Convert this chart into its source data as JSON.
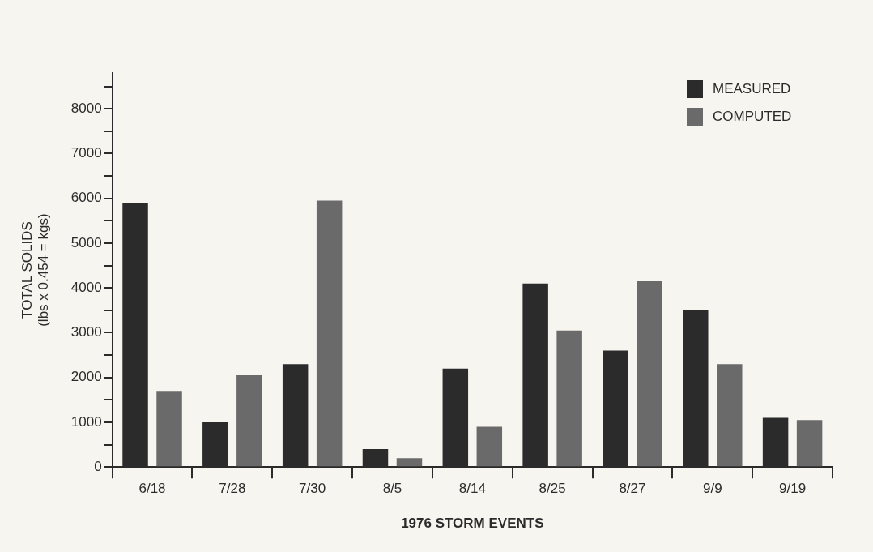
{
  "chart_data": {
    "type": "bar",
    "xlabel": "1976 STORM EVENTS",
    "ylabel": "TOTAL SOLIDS\n(lbs x 0.454 = kgs)",
    "categories": [
      "6/18",
      "7/28",
      "7/30",
      "8/5",
      "8/14",
      "8/25",
      "8/27",
      "9/9",
      "9/19"
    ],
    "series": [
      {
        "name": "MEASURED",
        "color": "#2b2b2b",
        "values": [
          5900,
          1000,
          2300,
          400,
          2200,
          4100,
          2600,
          3500,
          1100
        ]
      },
      {
        "name": "COMPUTED",
        "color": "#6a6a6a",
        "values": [
          1700,
          2050,
          5950,
          200,
          900,
          3050,
          4150,
          2300,
          1050
        ]
      }
    ],
    "ylim": [
      0,
      8800
    ],
    "yticks": [
      0,
      {
        "value": 500,
        "label": null
      },
      1000,
      {
        "value": 1500,
        "label": null
      },
      2000,
      {
        "value": 2500,
        "label": null
      },
      3000,
      {
        "value": 3500,
        "label": null
      },
      4000,
      {
        "value": 4500,
        "label": null
      },
      5000,
      {
        "value": 5500,
        "label": null
      },
      6000,
      {
        "value": 6500,
        "label": null
      },
      7000,
      {
        "value": 7500,
        "label": null
      },
      8000,
      {
        "value": 8500,
        "label": null
      }
    ],
    "grid": false,
    "legend": "top right"
  }
}
